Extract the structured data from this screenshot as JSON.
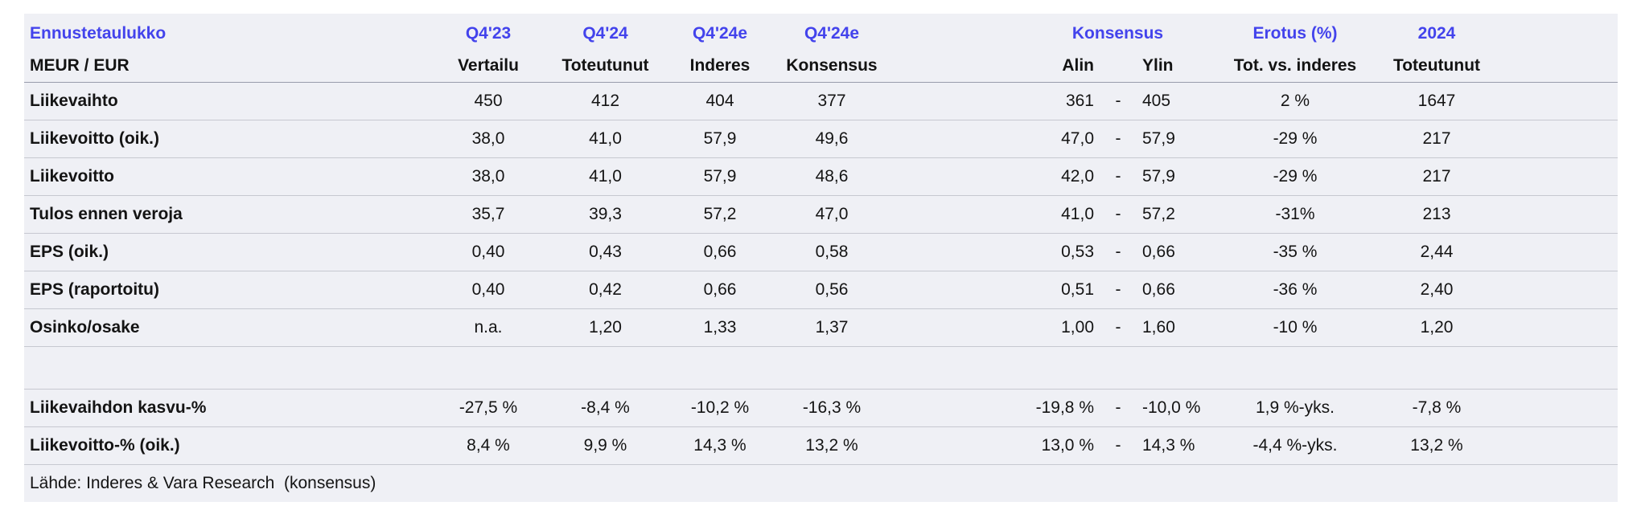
{
  "colors": {
    "accent_blue": "#4343ec",
    "row_background": "#eff0f5",
    "row_divider": "#c6c8d0",
    "header_divider": "#989cab",
    "text": "#141414"
  },
  "table": {
    "title": "Ennustetaulukko",
    "subtitle": "MEUR /  EUR",
    "source": "Lähde: Inderes & Vara Research  (konsensus)",
    "columns": {
      "vertailu_top": "Q4'23",
      "vertailu_sub": "Vertailu",
      "toteutunut_top": "Q4'24",
      "toteutunut_sub": "Toteutunut",
      "inderes_top": "Q4'24e",
      "inderes_sub": "Inderes",
      "konsensus_top": "Q4'24e",
      "konsensus_sub": "Konsensus",
      "range_group": "Konsensus",
      "range_low": "Alin",
      "range_high": "Ylin",
      "erotus_top": "Erotus (%)",
      "erotus_sub": "Tot. vs. inderes",
      "fy_top": "2024",
      "fy_sub": "Toteutunut"
    },
    "rows": [
      {
        "label": "Liikevaihto",
        "vertailu": "450",
        "toteutunut": "412",
        "inderes": "404",
        "konsensus": "377",
        "alin": "361",
        "sep": "-",
        "ylin": "405",
        "erotus": "2 %",
        "fy2024": "1647"
      },
      {
        "label": "Liikevoitto (oik.)",
        "vertailu": "38,0",
        "toteutunut": "41,0",
        "inderes": "57,9",
        "konsensus": "49,6",
        "alin": "47,0",
        "sep": "-",
        "ylin": "57,9",
        "erotus": "-29 %",
        "fy2024": "217"
      },
      {
        "label": "Liikevoitto",
        "vertailu": "38,0",
        "toteutunut": "41,0",
        "inderes": "57,9",
        "konsensus": "48,6",
        "alin": "42,0",
        "sep": "-",
        "ylin": "57,9",
        "erotus": "-29 %",
        "fy2024": "217"
      },
      {
        "label": "Tulos ennen veroja",
        "vertailu": "35,7",
        "toteutunut": "39,3",
        "inderes": "57,2",
        "konsensus": "47,0",
        "alin": "41,0",
        "sep": "-",
        "ylin": "57,2",
        "erotus": "-31%",
        "fy2024": "213"
      },
      {
        "label": "EPS (oik.)",
        "vertailu": "0,40",
        "toteutunut": "0,43",
        "inderes": "0,66",
        "konsensus": "0,58",
        "alin": "0,53",
        "sep": "-",
        "ylin": "0,66",
        "erotus": "-35 %",
        "fy2024": "2,44"
      },
      {
        "label": "EPS (raportoitu)",
        "vertailu": "0,40",
        "toteutunut": "0,42",
        "inderes": "0,66",
        "konsensus": "0,56",
        "alin": "0,51",
        "sep": "-",
        "ylin": "0,66",
        "erotus": "-36 %",
        "fy2024": "2,40"
      },
      {
        "label": "Osinko/osake",
        "vertailu": "n.a.",
        "toteutunut": "1,20",
        "inderes": "1,33",
        "konsensus": "1,37",
        "alin": "1,00",
        "sep": "-",
        "ylin": "1,60",
        "erotus": "-10 %",
        "fy2024": "1,20"
      },
      {
        "spacer": true,
        "label": "",
        "vertailu": "",
        "toteutunut": "",
        "inderes": "",
        "konsensus": "",
        "alin": "",
        "sep": "",
        "ylin": "",
        "erotus": "",
        "fy2024": ""
      },
      {
        "label": "Liikevaihdon kasvu-%",
        "vertailu": "-27,5 %",
        "toteutunut": "-8,4 %",
        "inderes": "-10,2 %",
        "konsensus": "-16,3 %",
        "alin": "-19,8 %",
        "sep": "-",
        "ylin": "-10,0 %",
        "erotus": "1,9 %-yks.",
        "fy2024": "-7,8 %"
      },
      {
        "label": "Liikevoitto-% (oik.)",
        "vertailu": "8,4 %",
        "toteutunut": "9,9 %",
        "inderes": "14,3 %",
        "konsensus": "13,2 %",
        "alin": "13,0 %",
        "sep": "-",
        "ylin": "14,3 %",
        "erotus": "-4,4 %-yks.",
        "fy2024": "13,2 %"
      }
    ]
  }
}
